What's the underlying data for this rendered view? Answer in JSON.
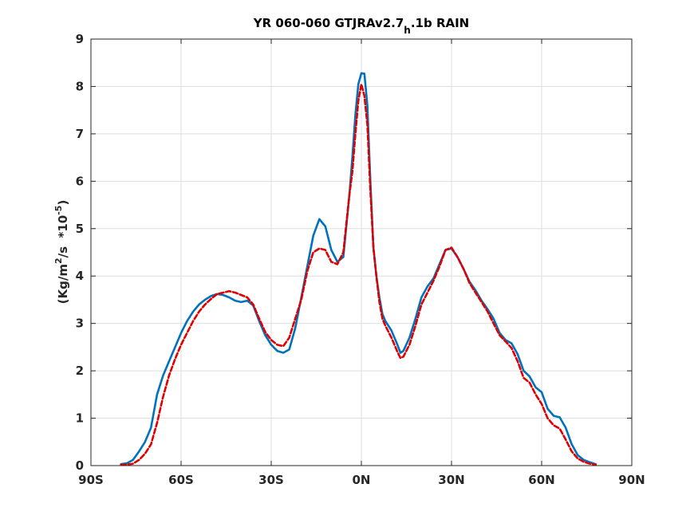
{
  "chart_data": {
    "type": "line",
    "title": {
      "pre": "YR 060-060 GTJRAv2.7",
      "sub": "h",
      "post": ".1b RAIN"
    },
    "ylabel": {
      "pre": "(Kg/m",
      "sup1": "2",
      "mid": "/s  *10",
      "sup2": "-5",
      "post": ")"
    },
    "xlabel": "",
    "xlim": [
      -90,
      90
    ],
    "ylim": [
      0,
      9
    ],
    "grid": true,
    "x_ticks": [
      -90,
      -60,
      -30,
      0,
      30,
      60,
      90
    ],
    "x_tick_labels": [
      "90S",
      "60S",
      "30S",
      "0N",
      "30N",
      "60N",
      "90N"
    ],
    "y_ticks": [
      0,
      1,
      2,
      3,
      4,
      5,
      6,
      7,
      8,
      9
    ],
    "y_tick_labels": [
      "0",
      "1",
      "2",
      "3",
      "4",
      "5",
      "6",
      "7",
      "8",
      "9"
    ],
    "series": [
      {
        "color": "#0072bd",
        "style": "solid",
        "points": [
          [
            -80,
            0.03
          ],
          [
            -78,
            0.05
          ],
          [
            -76,
            0.12
          ],
          [
            -74,
            0.3
          ],
          [
            -72,
            0.5
          ],
          [
            -70,
            0.8
          ],
          [
            -68,
            1.5
          ],
          [
            -66,
            1.9
          ],
          [
            -64,
            2.2
          ],
          [
            -62,
            2.5
          ],
          [
            -60,
            2.8
          ],
          [
            -58,
            3.05
          ],
          [
            -56,
            3.25
          ],
          [
            -54,
            3.4
          ],
          [
            -52,
            3.5
          ],
          [
            -50,
            3.58
          ],
          [
            -48,
            3.62
          ],
          [
            -46,
            3.6
          ],
          [
            -44,
            3.55
          ],
          [
            -42,
            3.48
          ],
          [
            -40,
            3.45
          ],
          [
            -38,
            3.48
          ],
          [
            -36,
            3.38
          ],
          [
            -34,
            3.05
          ],
          [
            -32,
            2.75
          ],
          [
            -30,
            2.55
          ],
          [
            -28,
            2.42
          ],
          [
            -26,
            2.38
          ],
          [
            -24,
            2.45
          ],
          [
            -22,
            2.9
          ],
          [
            -20,
            3.55
          ],
          [
            -18,
            4.2
          ],
          [
            -16,
            4.85
          ],
          [
            -14,
            5.2
          ],
          [
            -12,
            5.05
          ],
          [
            -10,
            4.55
          ],
          [
            -8,
            4.3
          ],
          [
            -6,
            4.4
          ],
          [
            -4,
            5.7
          ],
          [
            -3,
            6.5
          ],
          [
            -2,
            7.4
          ],
          [
            -1,
            8.05
          ],
          [
            0,
            8.28
          ],
          [
            1,
            8.27
          ],
          [
            2,
            7.6
          ],
          [
            3,
            6.0
          ],
          [
            4,
            4.6
          ],
          [
            5,
            4.0
          ],
          [
            6,
            3.55
          ],
          [
            7,
            3.2
          ],
          [
            8,
            3.05
          ],
          [
            10,
            2.85
          ],
          [
            12,
            2.55
          ],
          [
            13,
            2.38
          ],
          [
            14,
            2.42
          ],
          [
            16,
            2.7
          ],
          [
            18,
            3.1
          ],
          [
            20,
            3.55
          ],
          [
            22,
            3.78
          ],
          [
            24,
            3.95
          ],
          [
            26,
            4.25
          ],
          [
            28,
            4.55
          ],
          [
            30,
            4.58
          ],
          [
            32,
            4.4
          ],
          [
            34,
            4.15
          ],
          [
            36,
            3.88
          ],
          [
            38,
            3.7
          ],
          [
            40,
            3.48
          ],
          [
            42,
            3.3
          ],
          [
            44,
            3.1
          ],
          [
            46,
            2.8
          ],
          [
            48,
            2.65
          ],
          [
            50,
            2.58
          ],
          [
            52,
            2.35
          ],
          [
            54,
            2.0
          ],
          [
            56,
            1.88
          ],
          [
            58,
            1.65
          ],
          [
            60,
            1.55
          ],
          [
            62,
            1.2
          ],
          [
            64,
            1.05
          ],
          [
            66,
            1.02
          ],
          [
            68,
            0.8
          ],
          [
            70,
            0.45
          ],
          [
            72,
            0.22
          ],
          [
            74,
            0.12
          ],
          [
            76,
            0.07
          ],
          [
            78,
            0.03
          ]
        ]
      },
      {
        "color": "#e00000",
        "style": "dashed",
        "points": [
          [
            -80,
            0.02
          ],
          [
            -78,
            0.02
          ],
          [
            -76,
            0.04
          ],
          [
            -74,
            0.12
          ],
          [
            -72,
            0.25
          ],
          [
            -70,
            0.45
          ],
          [
            -68,
            0.9
          ],
          [
            -66,
            1.45
          ],
          [
            -64,
            1.9
          ],
          [
            -62,
            2.25
          ],
          [
            -60,
            2.55
          ],
          [
            -58,
            2.8
          ],
          [
            -56,
            3.05
          ],
          [
            -54,
            3.25
          ],
          [
            -52,
            3.4
          ],
          [
            -50,
            3.52
          ],
          [
            -48,
            3.62
          ],
          [
            -46,
            3.65
          ],
          [
            -44,
            3.68
          ],
          [
            -42,
            3.65
          ],
          [
            -40,
            3.6
          ],
          [
            -38,
            3.55
          ],
          [
            -36,
            3.4
          ],
          [
            -34,
            3.1
          ],
          [
            -32,
            2.82
          ],
          [
            -30,
            2.65
          ],
          [
            -28,
            2.55
          ],
          [
            -26,
            2.52
          ],
          [
            -24,
            2.7
          ],
          [
            -22,
            3.1
          ],
          [
            -20,
            3.5
          ],
          [
            -18,
            4.1
          ],
          [
            -16,
            4.5
          ],
          [
            -14,
            4.58
          ],
          [
            -12,
            4.55
          ],
          [
            -10,
            4.3
          ],
          [
            -8,
            4.25
          ],
          [
            -6,
            4.5
          ],
          [
            -4,
            5.7
          ],
          [
            -3,
            6.2
          ],
          [
            -2,
            7.0
          ],
          [
            -1,
            7.7
          ],
          [
            0,
            8.05
          ],
          [
            1,
            7.8
          ],
          [
            2,
            7.2
          ],
          [
            3,
            5.8
          ],
          [
            4,
            4.6
          ],
          [
            5,
            4.0
          ],
          [
            6,
            3.45
          ],
          [
            7,
            3.1
          ],
          [
            8,
            2.95
          ],
          [
            10,
            2.7
          ],
          [
            12,
            2.4
          ],
          [
            13,
            2.27
          ],
          [
            14,
            2.3
          ],
          [
            16,
            2.55
          ],
          [
            18,
            2.95
          ],
          [
            20,
            3.4
          ],
          [
            22,
            3.65
          ],
          [
            24,
            3.9
          ],
          [
            26,
            4.2
          ],
          [
            28,
            4.55
          ],
          [
            30,
            4.6
          ],
          [
            32,
            4.4
          ],
          [
            34,
            4.15
          ],
          [
            36,
            3.85
          ],
          [
            38,
            3.65
          ],
          [
            40,
            3.45
          ],
          [
            42,
            3.25
          ],
          [
            44,
            3.0
          ],
          [
            46,
            2.75
          ],
          [
            48,
            2.62
          ],
          [
            50,
            2.48
          ],
          [
            52,
            2.2
          ],
          [
            54,
            1.85
          ],
          [
            56,
            1.75
          ],
          [
            58,
            1.5
          ],
          [
            60,
            1.3
          ],
          [
            62,
            1.0
          ],
          [
            64,
            0.85
          ],
          [
            66,
            0.78
          ],
          [
            68,
            0.55
          ],
          [
            70,
            0.3
          ],
          [
            72,
            0.15
          ],
          [
            74,
            0.08
          ],
          [
            76,
            0.04
          ],
          [
            78,
            0.02
          ]
        ]
      }
    ]
  }
}
